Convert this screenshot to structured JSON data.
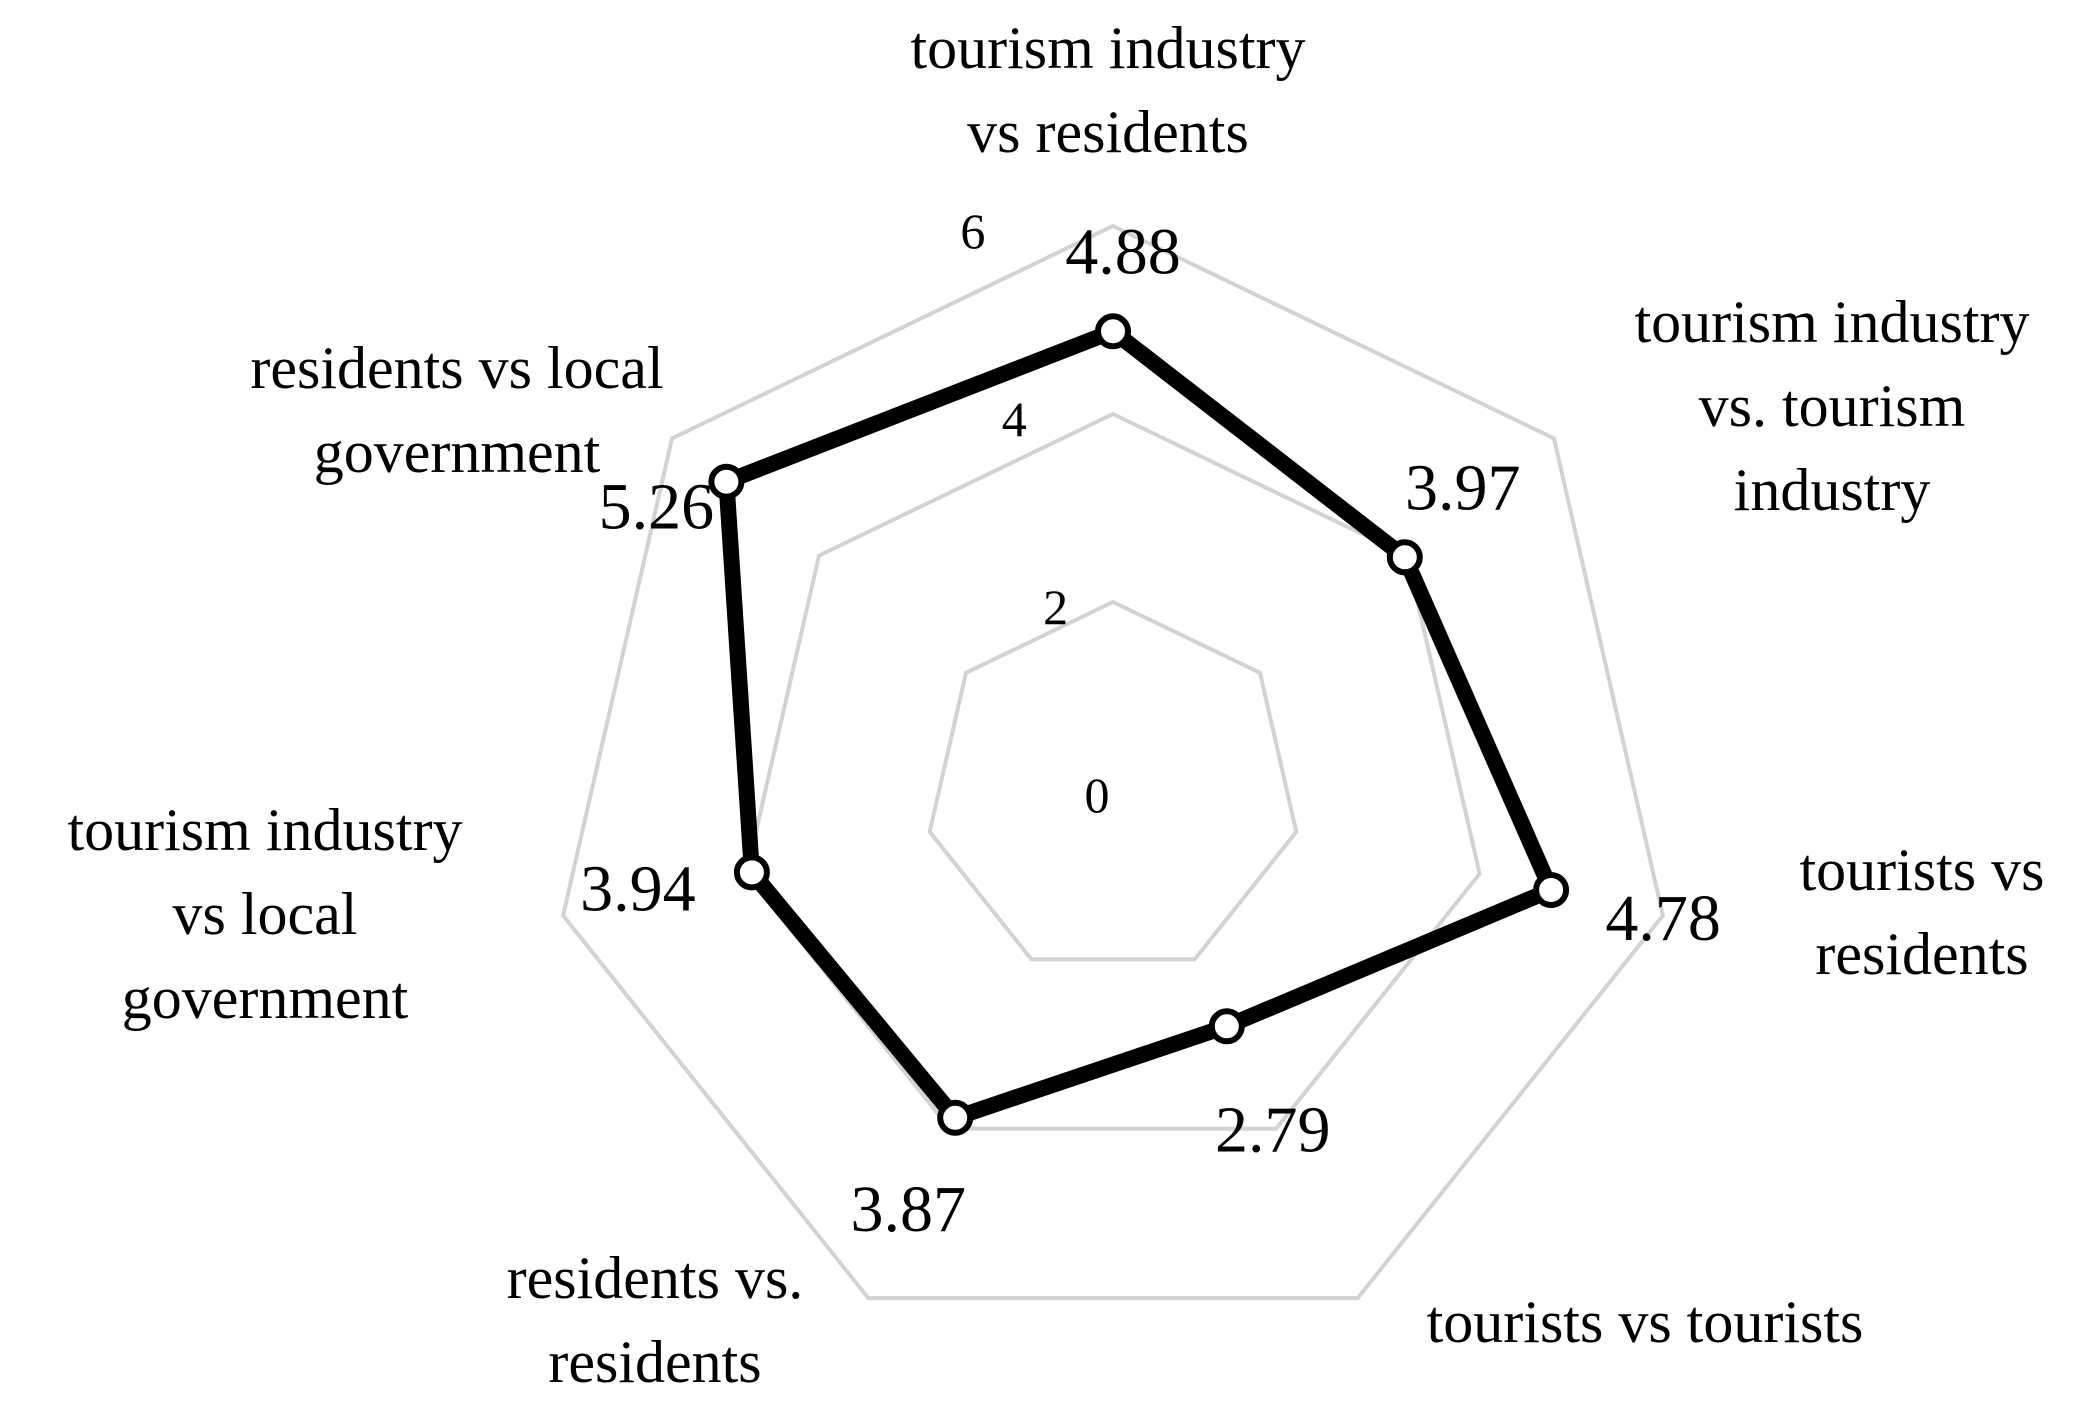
{
  "chart_data": {
    "type": "radar",
    "categories": [
      "tourism industry vs residents",
      "tourism industry vs. tourism industry",
      "tourists vs residents",
      "tourists vs tourists",
      "residents vs. residents",
      "tourism industry vs local government",
      "residents vs local government"
    ],
    "category_lines": [
      [
        "tourism industry",
        "vs residents"
      ],
      [
        "tourism industry",
        "vs. tourism",
        "industry"
      ],
      [
        "tourists vs",
        "residents"
      ],
      [
        "tourists vs tourists"
      ],
      [
        "residents vs.",
        "residents"
      ],
      [
        "tourism industry",
        "vs local",
        "government"
      ],
      [
        "residents vs local",
        "government"
      ]
    ],
    "series": [
      {
        "values": [
          4.88,
          3.97,
          4.78,
          2.79,
          3.87,
          3.94,
          5.26
        ]
      }
    ],
    "value_labels": [
      "4.88",
      "3.97",
      "4.78",
      "2.79",
      "3.87",
      "3.94",
      "5.26"
    ],
    "radial_ticks": [
      0,
      2,
      4,
      6
    ],
    "radial_tick_labels": [
      "0",
      "2",
      "4",
      "6"
    ],
    "rmax": 8,
    "grid": true,
    "legend": "none",
    "colors": {
      "series": "#000000",
      "grid": "#d3d3d3",
      "marker_fill": "#ffffff"
    }
  }
}
